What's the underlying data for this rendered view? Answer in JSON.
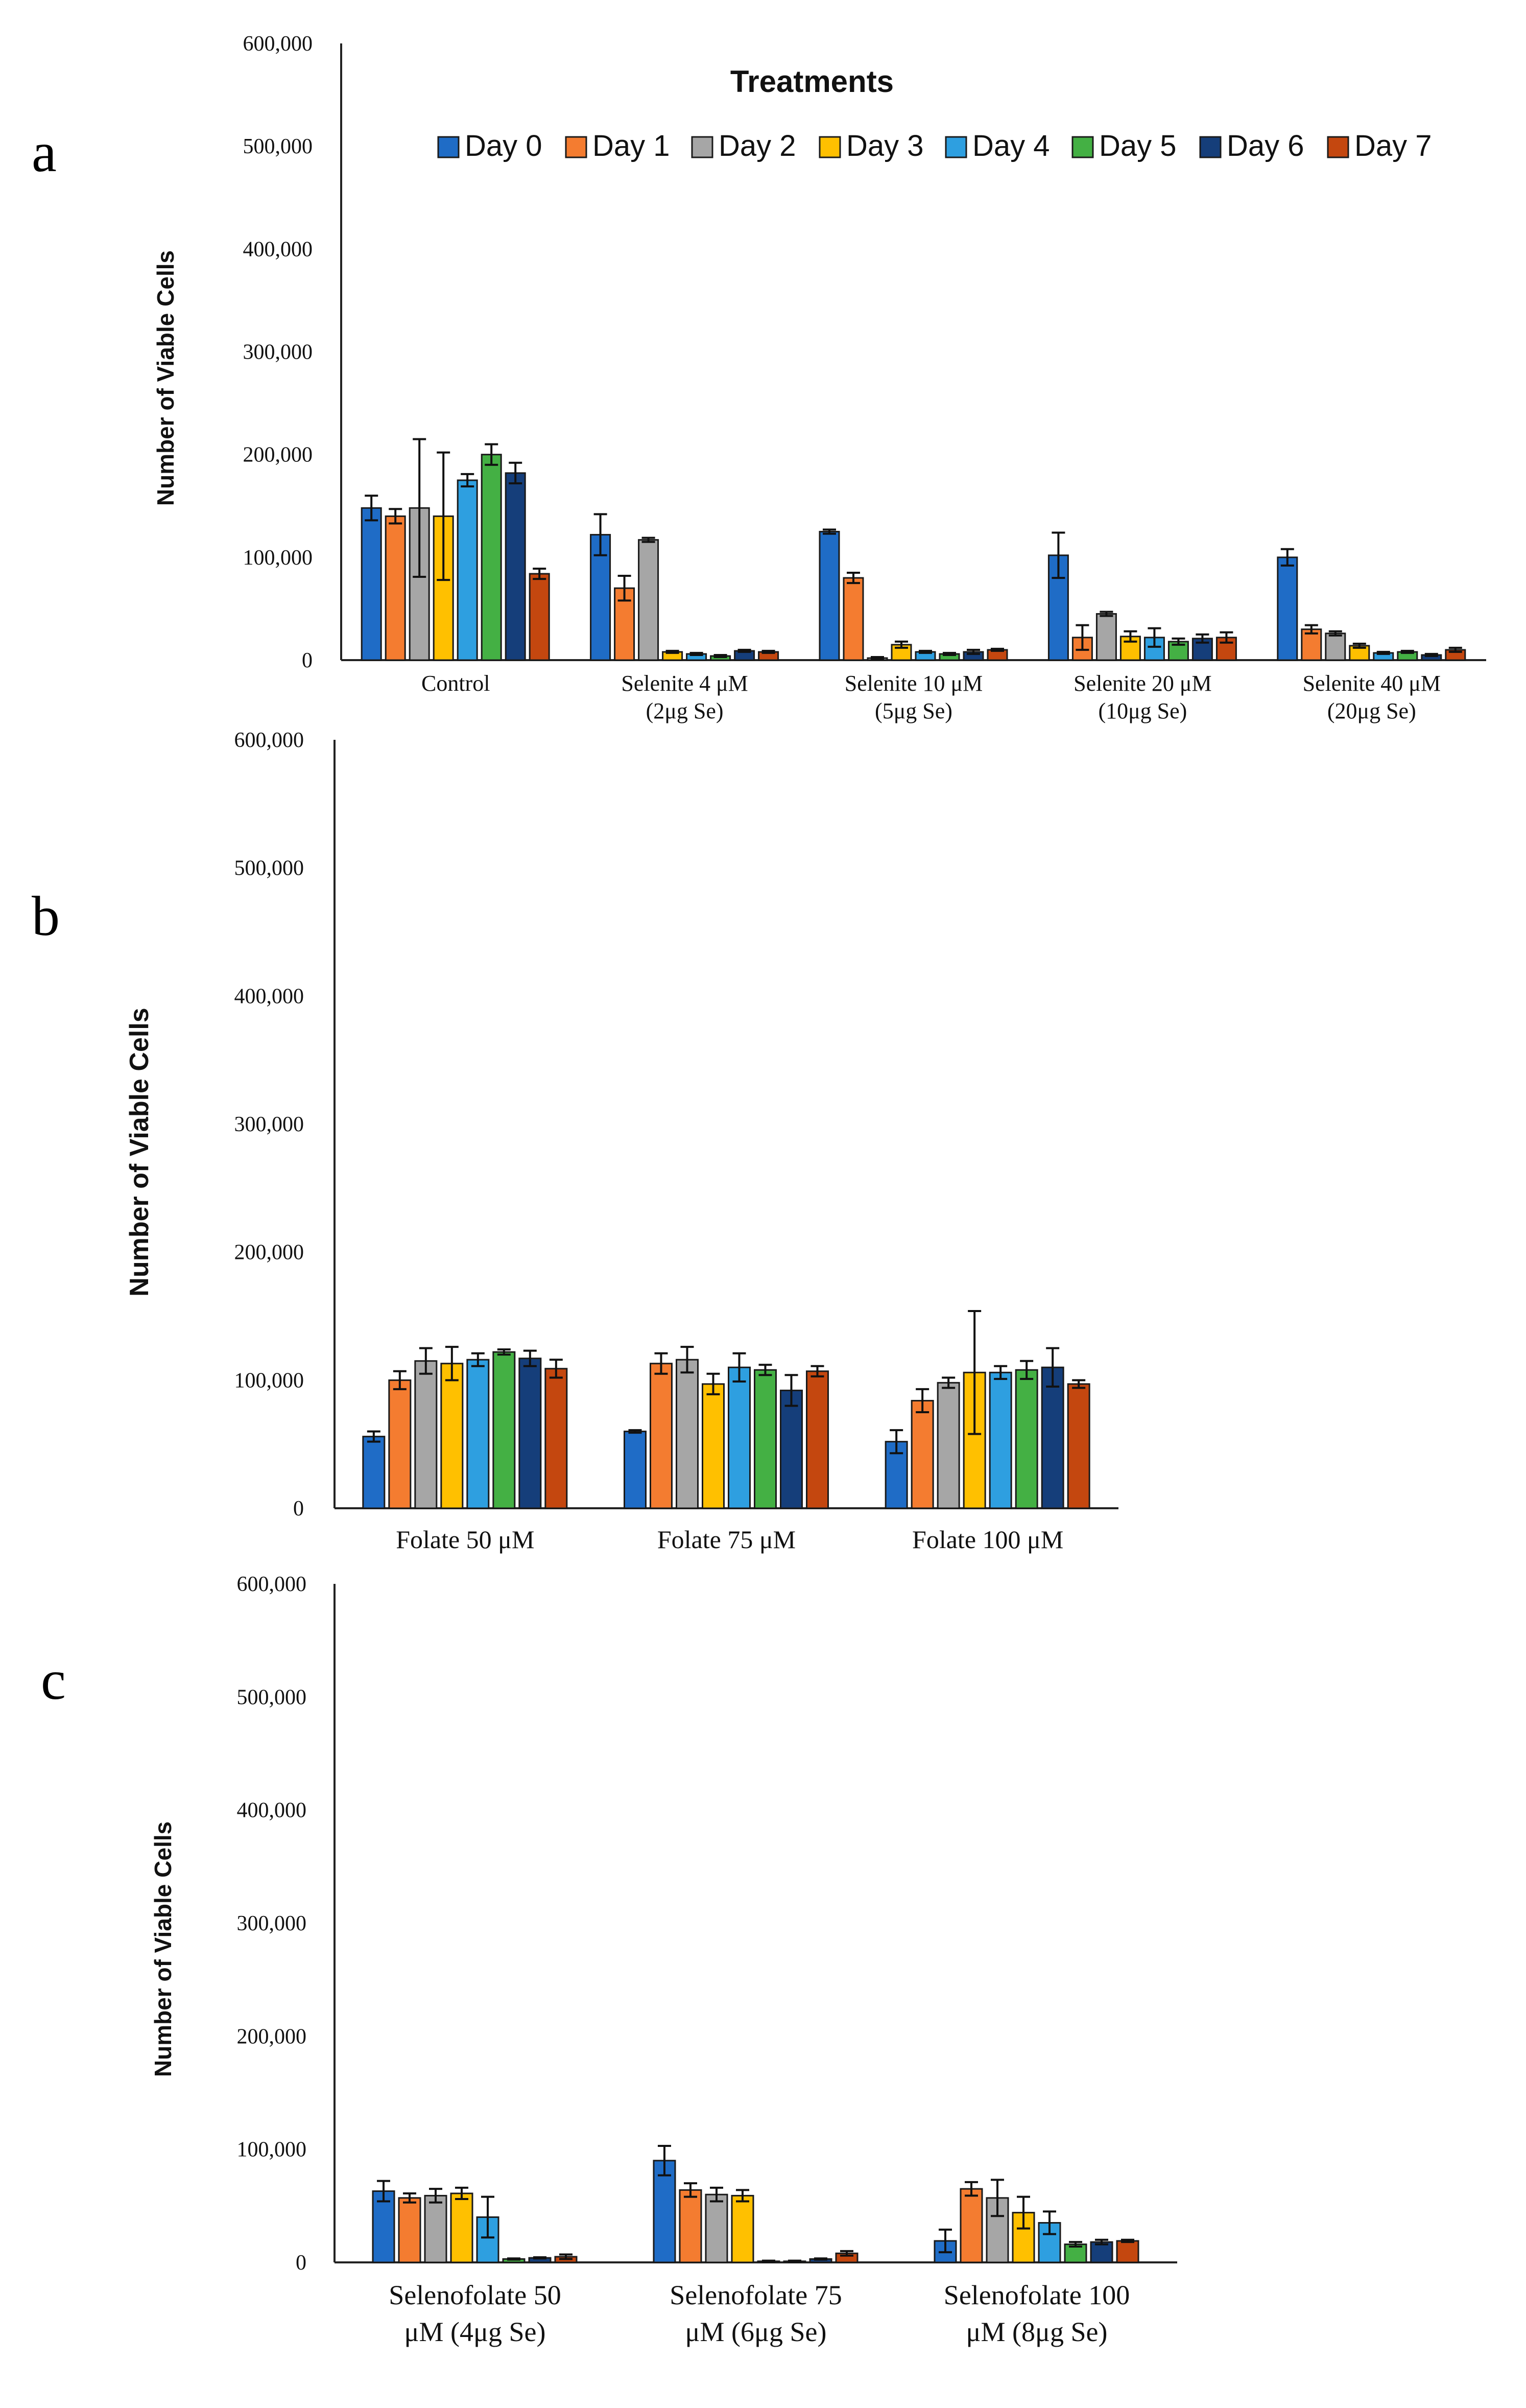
{
  "legend": {
    "title": "Treatments",
    "items": [
      "Day 0",
      "Day 1",
      "Day 2",
      "Day 3",
      "Day 4",
      "Day 5",
      "Day 6",
      "Day 7"
    ]
  },
  "colors": {
    "Day 0": "#1f6cc6",
    "Day 1": "#f47c30",
    "Day 2": "#a6a6a6",
    "Day 3": "#ffc000",
    "Day 4": "#2e9fe0",
    "Day 5": "#44b044",
    "Day 6": "#153e7a",
    "Day 7": "#c4470f"
  },
  "chart_data": [
    {
      "type": "bar",
      "panel": "a",
      "ylabel": "Number of Viable Cells",
      "ylim": [
        0,
        600000
      ],
      "yticks": [
        "0",
        "100,000",
        "200,000",
        "300,000",
        "400,000",
        "500,000",
        "600,000"
      ],
      "grid": false,
      "legend_position": "top",
      "categories": [
        [
          "Control"
        ],
        [
          "Selenite 4 μM",
          "(2μg Se)"
        ],
        [
          "Selenite 10 μM",
          "(5μg Se)"
        ],
        [
          "Selenite 20 μM",
          "(10μg Se)"
        ],
        [
          "Selenite 40 μM",
          "(20μg Se)"
        ]
      ],
      "series": [
        {
          "name": "Day 0",
          "values": [
            148000,
            122000,
            125000,
            102000,
            100000
          ],
          "errors": [
            12000,
            20000,
            2000,
            22000,
            8000
          ]
        },
        {
          "name": "Day 1",
          "values": [
            140000,
            70000,
            80000,
            22000,
            30000
          ],
          "errors": [
            7000,
            12000,
            5000,
            12000,
            4000
          ]
        },
        {
          "name": "Day 2",
          "values": [
            148000,
            117000,
            2000,
            45000,
            26000
          ],
          "errors": [
            67000,
            2000,
            1000,
            2000,
            2000
          ]
        },
        {
          "name": "Day 3",
          "values": [
            140000,
            8000,
            15000,
            23000,
            14000
          ],
          "errors": [
            62000,
            1000,
            3000,
            5000,
            2000
          ]
        },
        {
          "name": "Day 4",
          "values": [
            175000,
            6000,
            8000,
            22000,
            7000
          ],
          "errors": [
            6000,
            1000,
            1000,
            9000,
            1000
          ]
        },
        {
          "name": "Day 5",
          "values": [
            200000,
            4000,
            6000,
            18000,
            8000
          ],
          "errors": [
            10000,
            1000,
            1000,
            3000,
            1000
          ]
        },
        {
          "name": "Day 6",
          "values": [
            182000,
            9000,
            8000,
            21000,
            5000
          ],
          "errors": [
            10000,
            1000,
            2000,
            4000,
            1000
          ]
        },
        {
          "name": "Day 7",
          "values": [
            84000,
            8000,
            10000,
            22000,
            10000
          ],
          "errors": [
            5000,
            1000,
            1000,
            5000,
            2000
          ]
        }
      ]
    },
    {
      "type": "bar",
      "panel": "b",
      "ylabel": "Number of Viable Cells",
      "ylim": [
        0,
        600000
      ],
      "yticks": [
        "0",
        "100,000",
        "200,000",
        "300,000",
        "400,000",
        "500,000",
        "600,000"
      ],
      "grid": false,
      "categories": [
        [
          "Folate 50 μM"
        ],
        [
          "Folate 75 μM"
        ],
        [
          "Folate 100 μM"
        ]
      ],
      "series": [
        {
          "name": "Day 0",
          "values": [
            56000,
            60000,
            52000
          ],
          "errors": [
            4000,
            1000,
            9000
          ]
        },
        {
          "name": "Day 1",
          "values": [
            100000,
            113000,
            84000
          ],
          "errors": [
            7000,
            8000,
            9000
          ]
        },
        {
          "name": "Day 2",
          "values": [
            115000,
            116000,
            98000
          ],
          "errors": [
            10000,
            10000,
            4000
          ]
        },
        {
          "name": "Day 3",
          "values": [
            113000,
            97000,
            106000
          ],
          "errors": [
            13000,
            8000,
            48000
          ]
        },
        {
          "name": "Day 4",
          "values": [
            116000,
            110000,
            106000
          ],
          "errors": [
            5000,
            11000,
            5000
          ]
        },
        {
          "name": "Day 5",
          "values": [
            122000,
            108000,
            108000
          ],
          "errors": [
            2000,
            4000,
            7000
          ]
        },
        {
          "name": "Day 6",
          "values": [
            117000,
            92000,
            110000
          ],
          "errors": [
            6000,
            12000,
            15000
          ]
        },
        {
          "name": "Day 7",
          "values": [
            109000,
            107000,
            97000
          ],
          "errors": [
            7000,
            4000,
            3000
          ]
        }
      ]
    },
    {
      "type": "bar",
      "panel": "c",
      "ylabel": "Number of Viable Cells",
      "ylim": [
        0,
        600000
      ],
      "yticks": [
        "0",
        "100,000",
        "200,000",
        "300,000",
        "400,000",
        "500,000",
        "600,000"
      ],
      "grid": false,
      "categories": [
        [
          "Selenofolate 50",
          "μM (4μg Se)"
        ],
        [
          "Selenofolate 75",
          "μM (6μg Se)"
        ],
        [
          "Selenofolate 100",
          "μM (8μg Se)"
        ]
      ],
      "series": [
        {
          "name": "Day 0",
          "values": [
            63000,
            90000,
            19000
          ],
          "errors": [
            9000,
            13000,
            10000
          ]
        },
        {
          "name": "Day 1",
          "values": [
            57000,
            64000,
            65000
          ],
          "errors": [
            4000,
            6000,
            6000
          ]
        },
        {
          "name": "Day 2",
          "values": [
            59000,
            60000,
            57000
          ],
          "errors": [
            6000,
            6000,
            16000
          ]
        },
        {
          "name": "Day 3",
          "values": [
            61000,
            59000,
            44000
          ],
          "errors": [
            5000,
            5000,
            14000
          ]
        },
        {
          "name": "Day 4",
          "values": [
            40000,
            1000,
            35000
          ],
          "errors": [
            18000,
            500,
            10000
          ]
        },
        {
          "name": "Day 5",
          "values": [
            3000,
            1000,
            16000
          ],
          "errors": [
            500,
            500,
            2000
          ]
        },
        {
          "name": "Day 6",
          "values": [
            4000,
            3000,
            18000
          ],
          "errors": [
            500,
            500,
            2000
          ]
        },
        {
          "name": "Day 7",
          "values": [
            5000,
            8000,
            19000
          ],
          "errors": [
            2000,
            2000,
            1000
          ]
        }
      ]
    }
  ]
}
